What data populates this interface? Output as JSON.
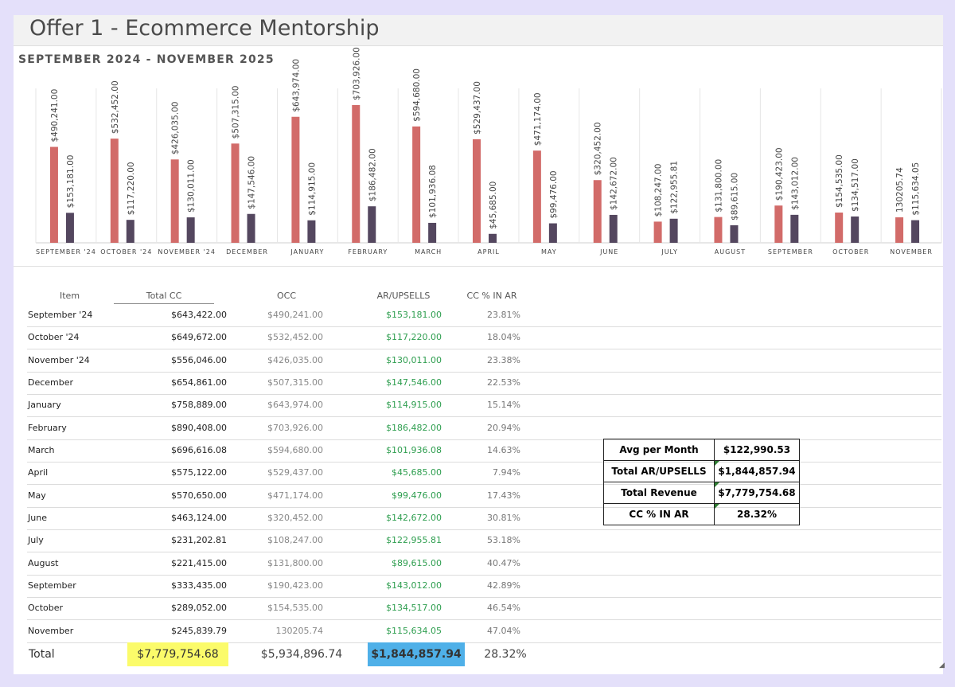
{
  "title": "Offer 1 - Ecommerce Mentorship",
  "chart_data": {
    "type": "bar",
    "title": "SEPTEMBER 2024 - NOVEMBER 2025",
    "categories": [
      "SEPTEMBER '24",
      "OCTOBER '24",
      "NOVEMBER '24",
      "DECEMBER",
      "JANUARY",
      "FEBRUARY",
      "MARCH",
      "APRIL",
      "MAY",
      "JUNE",
      "JULY",
      "AUGUST",
      "SEPTEMBER",
      "OCTOBER",
      "NOVEMBER"
    ],
    "series": [
      {
        "values": [
          490241,
          532452,
          426035,
          507315,
          643974,
          703926,
          594680,
          529437,
          471174,
          320452,
          108247,
          131800,
          190423,
          154535,
          130205.74
        ],
        "color": "#d26b69"
      },
      {
        "values": [
          153181,
          117220,
          130011,
          147546,
          114915,
          186482,
          101936.08,
          45685,
          99476,
          142672,
          122955.81,
          89615,
          143012,
          134517,
          115634.05
        ],
        "color": "#54475f"
      }
    ],
    "data_labels": [
      [
        "$490,241.00",
        "$532,452.00",
        "$426,035.00",
        "$507,315.00",
        "$643,974.00",
        "$703,926.00",
        "$594,680.00",
        "$529,437.00",
        "$471,174.00",
        "$320,452.00",
        "$108,247.00",
        "$131,800.00",
        "$190,423.00",
        "$154,535.00",
        "130205.74"
      ],
      [
        "$153,181.00",
        "$117,220.00",
        "$130,011.00",
        "$147,546.00",
        "$114,915.00",
        "$186,482.00",
        "$101,936.08",
        "$45,685.00",
        "$99,476.00",
        "$142,672.00",
        "$122,955.81",
        "$89,615.00",
        "$143,012.00",
        "$134,517.00",
        "$115,634.05"
      ]
    ],
    "ylim": [
      0,
      710000
    ],
    "grid": false,
    "legend": "none"
  },
  "table": {
    "headers": {
      "item": "Item",
      "total": "Total CC",
      "occ": "OCC",
      "ar": "AR/UPSELLS",
      "pct": "CC % IN AR"
    },
    "rows": [
      {
        "item": "September '24",
        "total": "$643,422.00",
        "occ": "$490,241.00",
        "ar": "$153,181.00",
        "pct": "23.81%"
      },
      {
        "item": "October '24",
        "total": "$649,672.00",
        "occ": "$532,452.00",
        "ar": "$117,220.00",
        "pct": "18.04%"
      },
      {
        "item": "November '24",
        "total": "$556,046.00",
        "occ": "$426,035.00",
        "ar": "$130,011.00",
        "pct": "23.38%"
      },
      {
        "item": "December",
        "total": "$654,861.00",
        "occ": "$507,315.00",
        "ar": "$147,546.00",
        "pct": "22.53%"
      },
      {
        "item": "January",
        "total": "$758,889.00",
        "occ": "$643,974.00",
        "ar": "$114,915.00",
        "pct": "15.14%"
      },
      {
        "item": "February",
        "total": "$890,408.00",
        "occ": "$703,926.00",
        "ar": "$186,482.00",
        "pct": "20.94%"
      },
      {
        "item": "March",
        "total": "$696,616.08",
        "occ": "$594,680.00",
        "ar": "$101,936.08",
        "pct": "14.63%"
      },
      {
        "item": "April",
        "total": "$575,122.00",
        "occ": "$529,437.00",
        "ar": "$45,685.00",
        "pct": "7.94%"
      },
      {
        "item": "May",
        "total": "$570,650.00",
        "occ": "$471,174.00",
        "ar": "$99,476.00",
        "pct": "17.43%"
      },
      {
        "item": "June",
        "total": "$463,124.00",
        "occ": "$320,452.00",
        "ar": "$142,672.00",
        "pct": "30.81%"
      },
      {
        "item": "July",
        "total": "$231,202.81",
        "occ": "$108,247.00",
        "ar": "$122,955.81",
        "pct": "53.18%"
      },
      {
        "item": "August",
        "total": "$221,415.00",
        "occ": "$131,800.00",
        "ar": "$89,615.00",
        "pct": "40.47%"
      },
      {
        "item": "September",
        "total": "$333,435.00",
        "occ": "$190,423.00",
        "ar": "$143,012.00",
        "pct": "42.89%"
      },
      {
        "item": "October",
        "total": "$289,052.00",
        "occ": "$154,535.00",
        "ar": "$134,517.00",
        "pct": "46.54%"
      },
      {
        "item": "November",
        "total": "$245,839.79",
        "occ": "130205.74",
        "ar": "$115,634.05",
        "pct": "47.04%"
      }
    ],
    "totals": {
      "label": "Total",
      "total": "$7,779,754.68",
      "occ": "$5,934,896.74",
      "ar": "$1,844,857.94",
      "pct": "28.32%"
    },
    "highlight_colors": {
      "total": "#fbfb6a",
      "ar": "#4fb0e8"
    }
  },
  "summary": [
    {
      "label": "Avg per Month",
      "value": "$122,990.53"
    },
    {
      "label": "Total AR/UPSELLS",
      "value": "$1,844,857.94"
    },
    {
      "label": "Total Revenue",
      "value": "$7,779,754.68"
    },
    {
      "label": "CC % IN AR",
      "value": "28.32%"
    }
  ]
}
